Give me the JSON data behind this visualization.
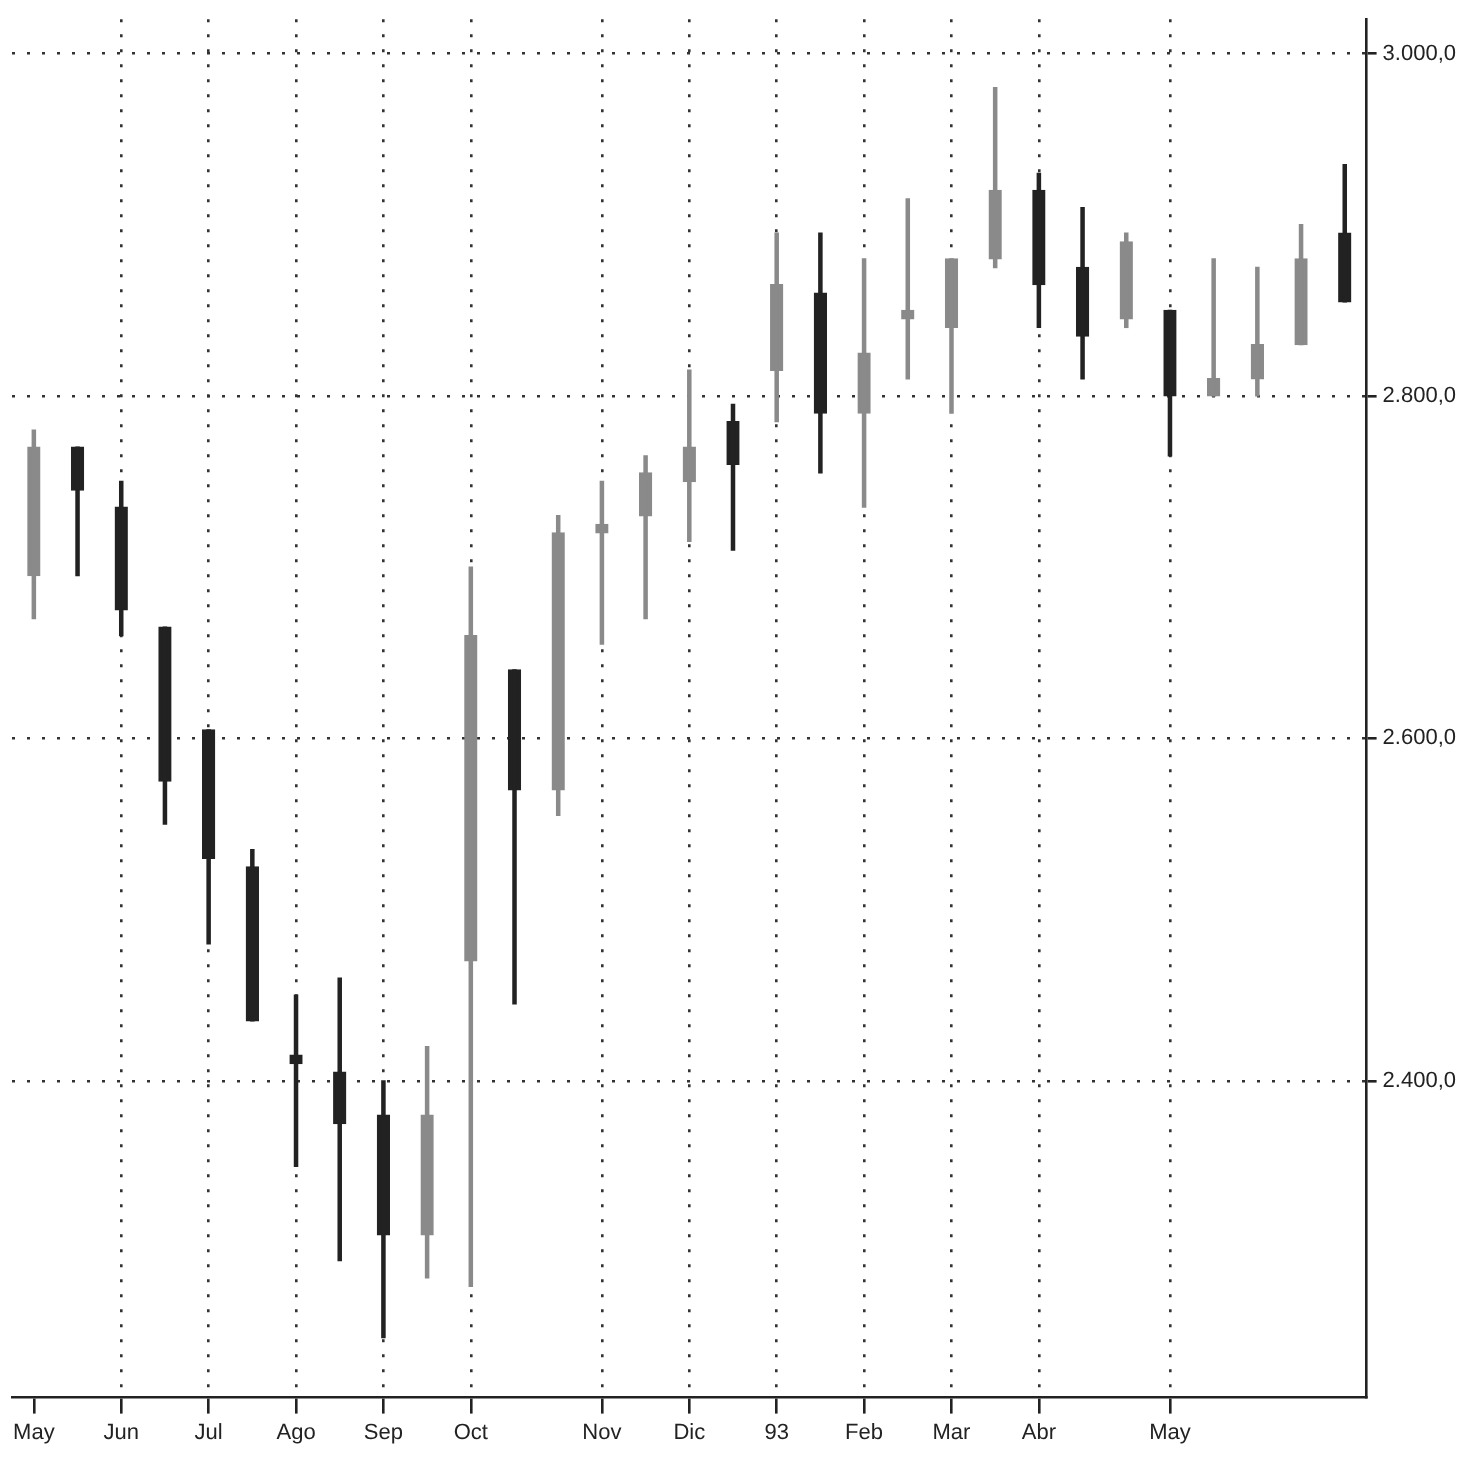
{
  "chart_data": {
    "type": "candlestick",
    "colors": [
      "#8a8a8a",
      "#222222",
      "#222222",
      "#222222",
      "#222222",
      "#222222",
      "#222222",
      "#222222",
      "#222222",
      "#8a8a8a",
      "#8a8a8a",
      "#222222",
      "#8a8a8a",
      "#8a8a8a",
      "#8a8a8a",
      "#8a8a8a",
      "#222222",
      "#8a8a8a",
      "#222222",
      "#8a8a8a",
      "#8a8a8a",
      "#8a8a8a",
      "#8a8a8a",
      "#222222",
      "#222222",
      "#8a8a8a",
      "#222222",
      "#8a8a8a",
      "#8a8a8a",
      "#8a8a8a",
      "#222222"
    ],
    "categories": [
      "May",
      null,
      "Jun",
      null,
      "Jul",
      null,
      "Ago",
      null,
      "Sep",
      null,
      "Oct",
      null,
      null,
      "Nov",
      null,
      "Dic",
      null,
      "93",
      null,
      "Feb",
      null,
      "Mar",
      null,
      "Abr",
      null,
      null,
      "May",
      null,
      null,
      null,
      null
    ],
    "ohlc": [
      [
        2695,
        2780,
        2670,
        2770
      ],
      [
        2770,
        2770,
        2695,
        2745
      ],
      [
        2735,
        2750,
        2660,
        2675
      ],
      [
        2665,
        2665,
        2550,
        2575
      ],
      [
        2605,
        2605,
        2480,
        2530
      ],
      [
        2525,
        2535,
        2435,
        2435
      ],
      [
        2415,
        2450,
        2350,
        2410
      ],
      [
        2405,
        2460,
        2295,
        2375
      ],
      [
        2380,
        2400,
        2250,
        2310
      ],
      [
        2310,
        2420,
        2285,
        2380
      ],
      [
        2470,
        2700,
        2280,
        2660
      ],
      [
        2640,
        2640,
        2445,
        2570
      ],
      [
        2570,
        2730,
        2555,
        2720
      ],
      [
        2720,
        2750,
        2655,
        2725
      ],
      [
        2730,
        2765,
        2670,
        2755
      ],
      [
        2750,
        2815,
        2715,
        2770
      ],
      [
        2785,
        2795,
        2710,
        2760
      ],
      [
        2815,
        2895,
        2785,
        2865
      ],
      [
        2860,
        2895,
        2755,
        2790
      ],
      [
        2790,
        2880,
        2735,
        2825
      ],
      [
        2845,
        2915,
        2810,
        2850
      ],
      [
        2840,
        2880,
        2790,
        2880
      ],
      [
        2880,
        2980,
        2875,
        2920
      ],
      [
        2920,
        2930,
        2840,
        2865
      ],
      [
        2875,
        2910,
        2810,
        2835
      ],
      [
        2845,
        2895,
        2840,
        2890
      ],
      [
        2850,
        2850,
        2765,
        2800
      ],
      [
        2800,
        2880,
        2800,
        2810
      ],
      [
        2810,
        2875,
        2800,
        2830
      ],
      [
        2830,
        2900,
        2830,
        2880
      ],
      [
        2895,
        2935,
        2855,
        2855
      ]
    ],
    "ylim": [
      2215,
      3020
    ],
    "yticks": [
      {
        "value": 2400,
        "label": "2.400,0"
      },
      {
        "value": 2600,
        "label": "2.600,0"
      },
      {
        "value": 2800,
        "label": "2.800,0"
      },
      {
        "value": 3000,
        "label": "3.000,0"
      }
    ],
    "grid": true,
    "line_style": "dotted"
  }
}
